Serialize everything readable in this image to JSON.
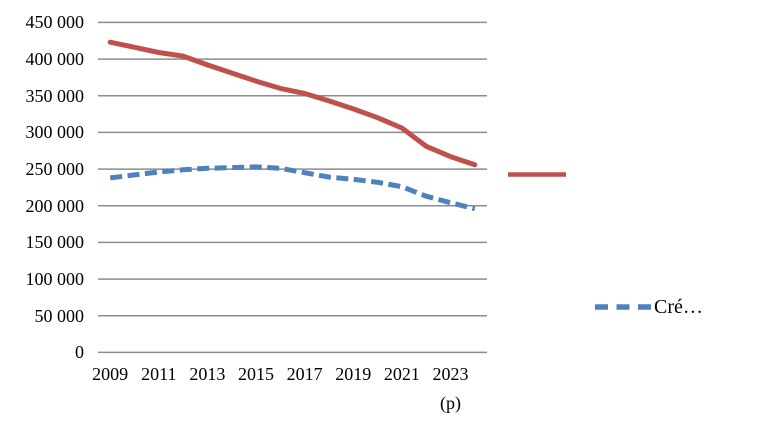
{
  "chart_data": {
    "type": "line",
    "title": "",
    "categories": [
      "2009",
      "2010",
      "2011",
      "2012",
      "2013",
      "2014",
      "2015",
      "2016",
      "2017",
      "2018",
      "2019",
      "2020",
      "2021",
      "2022",
      "2023",
      "2024"
    ],
    "series": [
      {
        "name": "",
        "color": "#C0504D",
        "line_style": "solid",
        "values": [
          423000,
          416000,
          409000,
          404000,
          392000,
          381000,
          370000,
          360000,
          353000,
          343000,
          332000,
          320000,
          306000,
          281000,
          267000,
          256000
        ]
      },
      {
        "name": "Cré…",
        "color": "#4F81BD",
        "line_style": "dashed",
        "values": [
          238000,
          242000,
          246000,
          249000,
          251000,
          252000,
          253000,
          251000,
          245000,
          239000,
          236000,
          232000,
          226000,
          213000,
          204000,
          196000
        ]
      }
    ],
    "ylim": [
      0,
      450000
    ],
    "ytick_interval": 50000,
    "ytick_labels": [
      "0",
      "50 000",
      "100 000",
      "150 000",
      "200 000",
      "250 000",
      "300 000",
      "350 000",
      "400 000",
      "450 000"
    ],
    "xtick_labels": [
      "2009",
      "2011",
      "2013",
      "2015",
      "2017",
      "2019",
      "2021",
      "2023"
    ],
    "x_axis_note": "(p)",
    "grid": "horizontal",
    "gridline_color": "#8C8C8C",
    "legend_position": "right",
    "legend": [
      {
        "label": "",
        "swatch": "solid-red-line"
      },
      {
        "label": "Cré…",
        "swatch": "dashed-blue-line"
      }
    ]
  }
}
